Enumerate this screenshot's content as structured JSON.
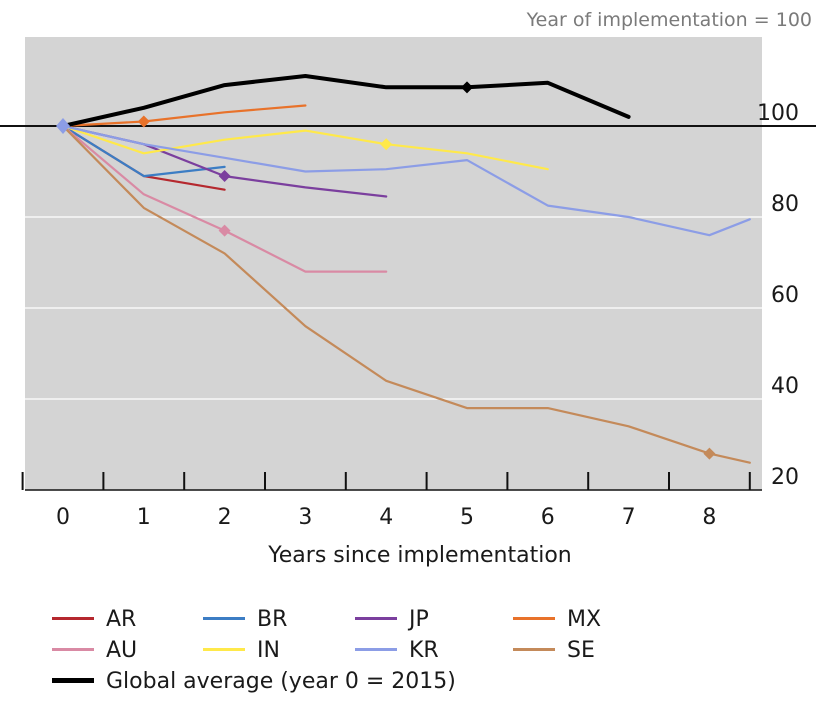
{
  "top_note": "Year of implementation = 100",
  "chart_data": {
    "type": "line",
    "xlabel": "Years since implementation",
    "ylabel": "",
    "xlim": [
      -0.5,
      8.5
    ],
    "ylim": [
      20,
      120
    ],
    "x_ticks": [
      0,
      1,
      2,
      3,
      4,
      5,
      6,
      7,
      8
    ],
    "y_ticks": [
      20,
      40,
      60,
      80,
      100
    ],
    "reference_line": 100,
    "grid": true,
    "legend_placement": "bottom",
    "series": [
      {
        "name": "AR",
        "color": "#b5282e",
        "points": [
          [
            0,
            100
          ],
          [
            1,
            89
          ],
          [
            2,
            86
          ]
        ],
        "markers": []
      },
      {
        "name": "BR",
        "color": "#3c7dc4",
        "points": [
          [
            0,
            100
          ],
          [
            1,
            89
          ],
          [
            2,
            91
          ]
        ],
        "markers": []
      },
      {
        "name": "JP",
        "color": "#7b3f9e",
        "points": [
          [
            0,
            100
          ],
          [
            1,
            96
          ],
          [
            2,
            89
          ],
          [
            3,
            86.5
          ],
          [
            4,
            84.5
          ]
        ],
        "markers": [
          2
        ]
      },
      {
        "name": "MX",
        "color": "#e8722a",
        "points": [
          [
            0,
            100
          ],
          [
            1,
            101
          ],
          [
            2,
            103
          ],
          [
            3,
            104.5
          ]
        ],
        "markers": [
          1
        ]
      },
      {
        "name": "AU",
        "color": "#d98aa4",
        "points": [
          [
            0,
            100
          ],
          [
            1,
            85
          ],
          [
            2,
            77
          ],
          [
            3,
            68
          ],
          [
            4,
            68
          ]
        ],
        "markers": [
          2
        ]
      },
      {
        "name": "IN",
        "color": "#ffe94a",
        "points": [
          [
            0,
            100
          ],
          [
            1,
            94
          ],
          [
            2,
            97
          ],
          [
            3,
            99
          ],
          [
            4,
            96
          ],
          [
            5,
            94
          ],
          [
            6,
            90.5
          ]
        ],
        "markers": [
          4
        ]
      },
      {
        "name": "KR",
        "color": "#8c9de6",
        "points": [
          [
            0,
            100
          ],
          [
            1,
            96
          ],
          [
            2,
            93
          ],
          [
            3,
            90
          ],
          [
            4,
            90.5
          ],
          [
            5,
            92.5
          ],
          [
            6,
            82.5
          ],
          [
            7,
            80
          ],
          [
            8,
            76
          ],
          [
            8.5,
            79.5
          ]
        ],
        "markers": []
      },
      {
        "name": "SE",
        "color": "#c48a5a",
        "points": [
          [
            0,
            100
          ],
          [
            1,
            82
          ],
          [
            2,
            72
          ],
          [
            3,
            56
          ],
          [
            4,
            44
          ],
          [
            5,
            38
          ],
          [
            6,
            38
          ],
          [
            7,
            34
          ],
          [
            8,
            28
          ],
          [
            8.5,
            26
          ]
        ],
        "markers": [
          8
        ]
      },
      {
        "name": "Global average (year 0 = 2015)",
        "color": "#000000",
        "thick": true,
        "points": [
          [
            0,
            100
          ],
          [
            1,
            104
          ],
          [
            2,
            109
          ],
          [
            3,
            111
          ],
          [
            4,
            108.5
          ],
          [
            5,
            108.5
          ],
          [
            6,
            109.5
          ],
          [
            7,
            102
          ]
        ],
        "markers": [
          5
        ]
      }
    ]
  }
}
